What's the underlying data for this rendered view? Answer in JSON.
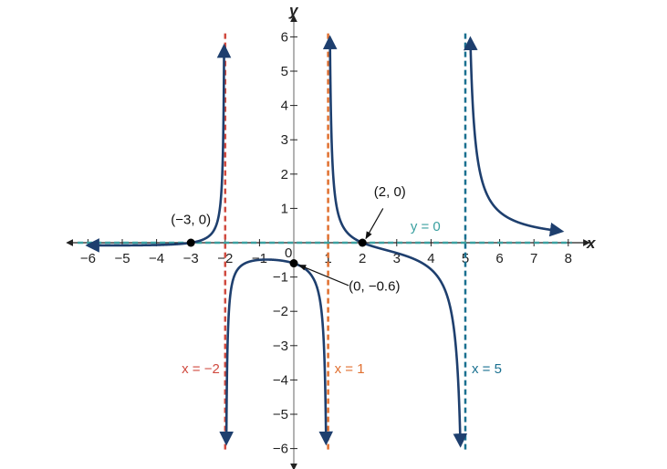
{
  "chart_data": {
    "type": "line",
    "xlabel": "x",
    "ylabel": "y",
    "xlim": [
      -6,
      8
    ],
    "ylim": [
      -6,
      6
    ],
    "xticks": [
      -6,
      -5,
      -4,
      -3,
      -2,
      -1,
      0,
      1,
      2,
      3,
      4,
      5,
      6,
      7,
      8
    ],
    "yticks": [
      -6,
      -5,
      -4,
      -3,
      -2,
      -1,
      1,
      2,
      3,
      4,
      5,
      6
    ],
    "origin_label": "0",
    "function": "f(x) = (x-2)(x+3) / ((x-1)(x+2)(x-5))",
    "curve_color": "#1e3f6e",
    "asymptotes": [
      {
        "type": "vertical",
        "value": -2,
        "label": "x = −2",
        "color": "#d04a3f"
      },
      {
        "type": "vertical",
        "value": 1,
        "label": "x = 1",
        "color": "#e07030"
      },
      {
        "type": "vertical",
        "value": 5,
        "label": "x = 5",
        "color": "#1a7090"
      },
      {
        "type": "horizontal",
        "value": 0,
        "label": "y = 0",
        "color": "#3aa0a0"
      }
    ],
    "points": [
      {
        "x": -3,
        "y": 0,
        "label": "(−3, 0)"
      },
      {
        "x": 2,
        "y": 0,
        "label": "(2, 0)"
      },
      {
        "x": 0,
        "y": -0.6,
        "label": "(0, −0.6)"
      }
    ]
  }
}
